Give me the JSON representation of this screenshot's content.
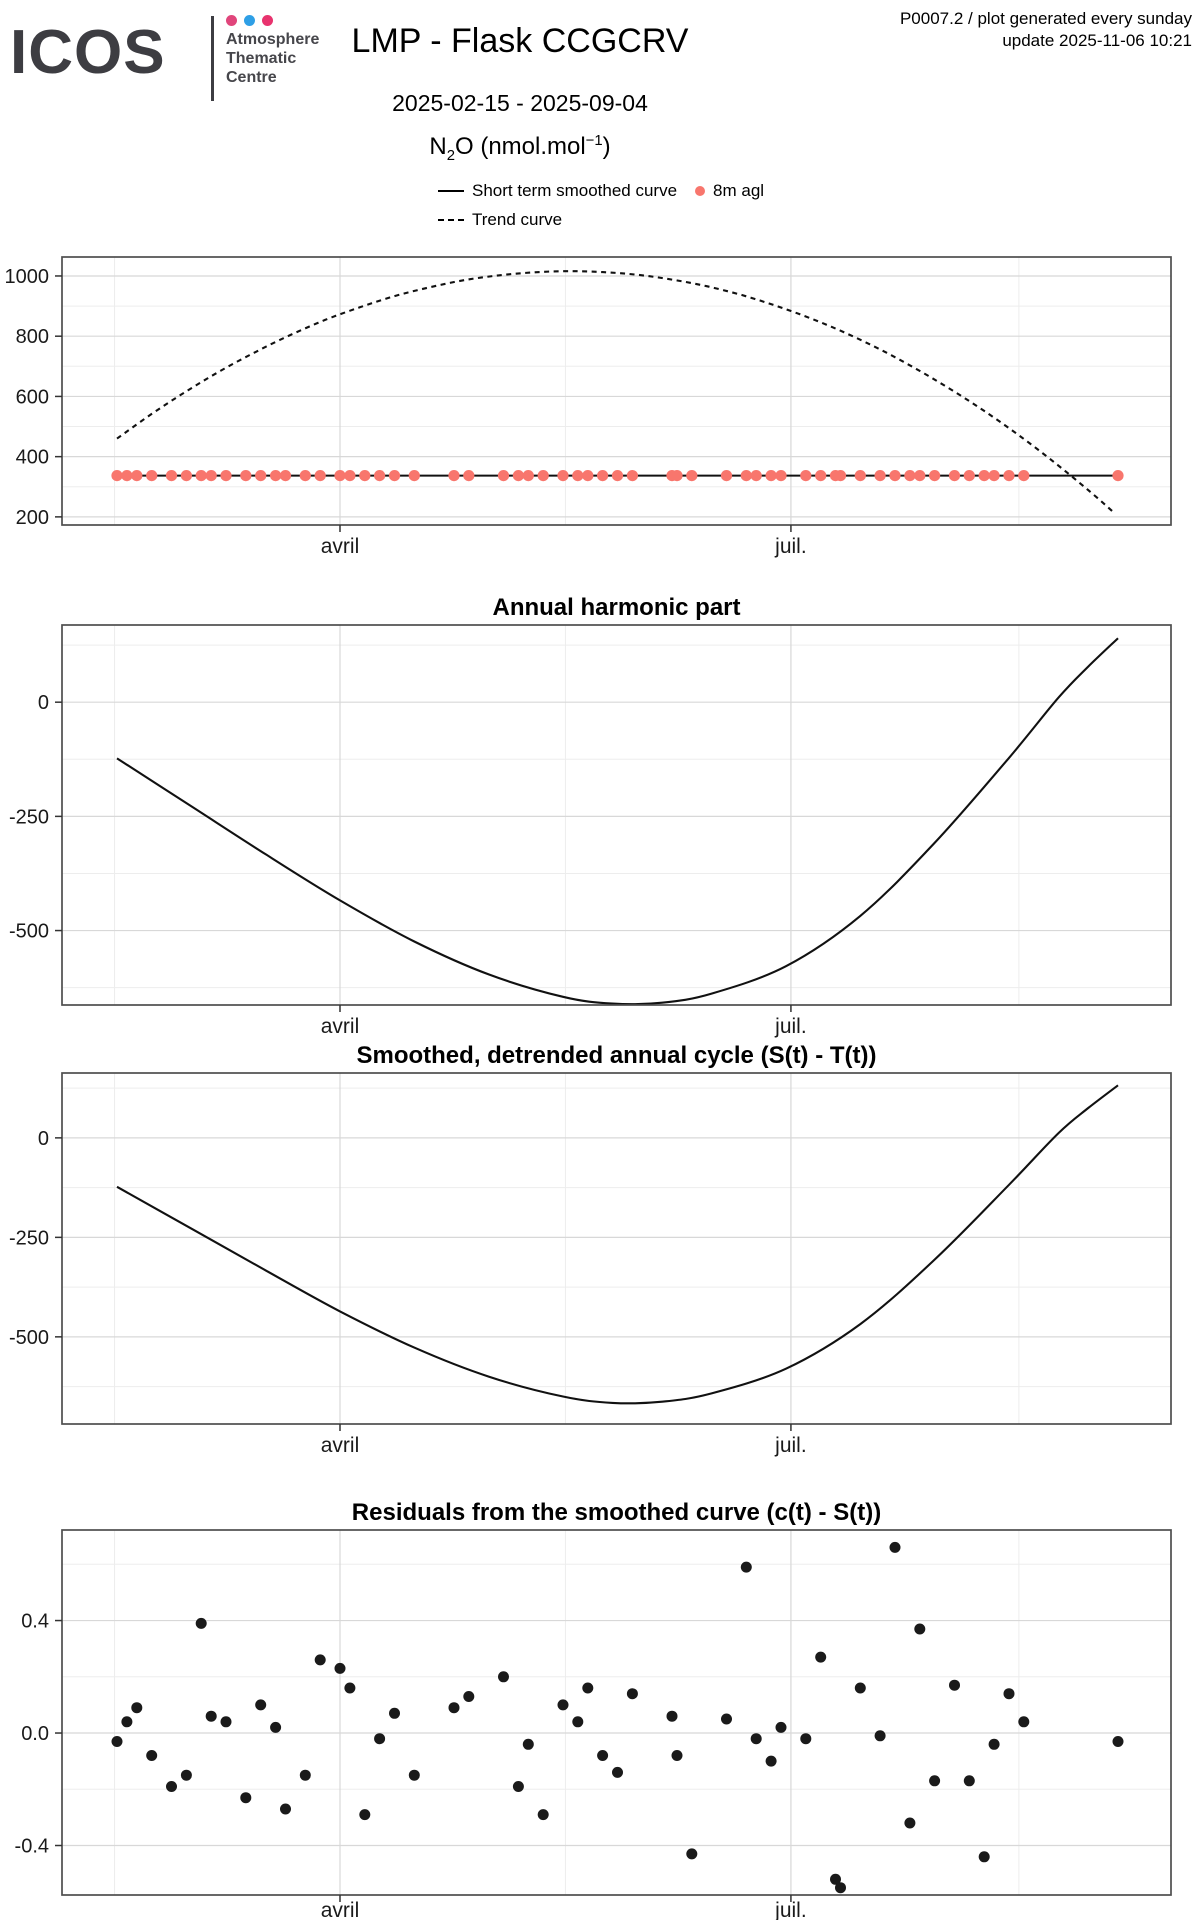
{
  "header": {
    "logo_text": "ICOS",
    "logo_unit": [
      "Atmosphere",
      "Thematic",
      "Centre"
    ],
    "brand_dot_colors": [
      "#e0457b",
      "#2e9fe6",
      "#e8336e"
    ],
    "title": "LMP - Flask CCGCRV",
    "date_range": "2025-02-15 - 2025-09-04",
    "species": {
      "prefix": "N",
      "sub": "2",
      "mid": "O (nmol.mol",
      "sup": "−1",
      "close": ")"
    },
    "info_line1": "P0007.2 / plot generated every sunday",
    "info_line2": "update  2025-11-06 10:21"
  },
  "legend": {
    "smoothed_label": "Short term smoothed curve",
    "points_label": "8m agl",
    "trend_label": "Trend curve",
    "point_color": "#F8766D",
    "line_color": "#000000"
  },
  "chart_data": [
    {
      "type": "line",
      "title": "",
      "ylabel": "N2O (nmol.mol-1)",
      "xlim_days": [
        -11.1,
        212.7
      ],
      "x_ticks": [
        {
          "label": "avril",
          "day": 45
        },
        {
          "label": "juil.",
          "day": 136
        }
      ],
      "x_minor_days": [
        -0.5,
        90.5,
        182
      ],
      "ylim": [
        173,
        1063
      ],
      "y_ticks": [
        {
          "v": 200,
          "label": "200"
        },
        {
          "v": 400,
          "label": "400"
        },
        {
          "v": 600,
          "label": "600"
        },
        {
          "v": 800,
          "label": "800"
        },
        {
          "v": 1000,
          "label": "1000"
        }
      ],
      "y_minor": [
        300,
        500,
        700,
        900
      ],
      "series": [
        {
          "name": "Trend curve",
          "type": "line",
          "dash": true,
          "color": "#111111",
          "points": [
            [
              0,
              460
            ],
            [
              7,
              542
            ],
            [
              14,
              617
            ],
            [
              21,
              686
            ],
            [
              28,
              748
            ],
            [
              35,
              804
            ],
            [
              42,
              854
            ],
            [
              49,
              896
            ],
            [
              56,
              933
            ],
            [
              63,
              962
            ],
            [
              70,
              986
            ],
            [
              77,
              1002
            ],
            [
              84,
              1012
            ],
            [
              91,
              1016
            ],
            [
              98,
              1013
            ],
            [
              105,
              1004
            ],
            [
              112,
              988
            ],
            [
              119,
              966
            ],
            [
              126,
              937
            ],
            [
              133,
              901
            ],
            [
              140,
              859
            ],
            [
              147,
              811
            ],
            [
              154,
              756
            ],
            [
              161,
              694
            ],
            [
              168,
              626
            ],
            [
              175,
              552
            ],
            [
              182,
              471
            ],
            [
              189,
              383
            ],
            [
              196,
              289
            ],
            [
              201,
              217
            ]
          ]
        },
        {
          "name": "Short term smoothed curve",
          "type": "line",
          "dash": false,
          "color": "#111111",
          "points": [
            [
              0,
              337
            ],
            [
              202,
              337
            ]
          ]
        },
        {
          "name": "8m agl",
          "type": "scatter",
          "color": "#F8766D",
          "radius": 5.6,
          "value": 337,
          "days": [
            0,
            2,
            4,
            7,
            11,
            14,
            17,
            19,
            22,
            26,
            29,
            32,
            34,
            38,
            41,
            45,
            47,
            50,
            53,
            56,
            60,
            68,
            71,
            78,
            81,
            83,
            86,
            90,
            93,
            95,
            98,
            101,
            104,
            112,
            113,
            116,
            123,
            127,
            129,
            132,
            134,
            139,
            142,
            145,
            146,
            150,
            154,
            157,
            160,
            162,
            165,
            169,
            172,
            175,
            177,
            180,
            183,
            202
          ]
        }
      ]
    },
    {
      "type": "line",
      "title": "Annual harmonic part",
      "xlim_days": [
        -11.1,
        212.7
      ],
      "x_ticks": [
        {
          "label": "avril",
          "day": 45
        },
        {
          "label": "juil.",
          "day": 136
        }
      ],
      "x_minor_days": [
        -0.5,
        90.5,
        182
      ],
      "ylim": [
        -663,
        169
      ],
      "y_ticks": [
        {
          "v": 0,
          "label": "0"
        },
        {
          "v": -250,
          "label": "-250"
        },
        {
          "v": -500,
          "label": "-500"
        }
      ],
      "y_minor": [
        125,
        -125,
        -375,
        -625
      ],
      "series": [
        {
          "name": "Annual harmonic",
          "type": "line",
          "dash": false,
          "color": "#111111",
          "points": [
            [
              0,
              -123
            ],
            [
              15,
              -228
            ],
            [
              30,
              -333
            ],
            [
              45,
              -434
            ],
            [
              60,
              -524
            ],
            [
              75,
              -596
            ],
            [
              90,
              -645
            ],
            [
              100,
              -660
            ],
            [
              110,
              -658
            ],
            [
              120,
              -638
            ],
            [
              135,
              -578
            ],
            [
              150,
              -468
            ],
            [
              165,
              -308
            ],
            [
              180,
              -122
            ],
            [
              190,
              10
            ],
            [
              196,
              78
            ],
            [
              202,
              140
            ]
          ]
        }
      ]
    },
    {
      "type": "line",
      "title": "Smoothed, detrended annual cycle (S(t) - T(t))",
      "xlim_days": [
        -11.1,
        212.7
      ],
      "x_ticks": [
        {
          "label": "avril",
          "day": 45
        },
        {
          "label": "juil.",
          "day": 136
        }
      ],
      "x_minor_days": [
        -0.5,
        90.5,
        182
      ],
      "ylim": [
        -719,
        163
      ],
      "y_ticks": [
        {
          "v": 0,
          "label": "0"
        },
        {
          "v": -250,
          "label": "-250"
        },
        {
          "v": -500,
          "label": "-500"
        }
      ],
      "y_minor": [
        125,
        -125,
        -375,
        -625
      ],
      "series": [
        {
          "name": "Smoothed detrended annual cycle",
          "type": "line",
          "dash": false,
          "color": "#111111",
          "points": [
            [
              0,
              -123
            ],
            [
              15,
              -228
            ],
            [
              30,
              -333
            ],
            [
              45,
              -436
            ],
            [
              60,
              -527
            ],
            [
              75,
              -600
            ],
            [
              90,
              -650
            ],
            [
              100,
              -666
            ],
            [
              110,
              -663
            ],
            [
              120,
              -642
            ],
            [
              135,
              -580
            ],
            [
              150,
              -468
            ],
            [
              165,
              -306
            ],
            [
              180,
              -118
            ],
            [
              190,
              12
            ],
            [
              196,
              75
            ],
            [
              202,
              132
            ]
          ]
        }
      ]
    },
    {
      "type": "scatter",
      "title": "Residuals from the smoothed curve (c(t) - S(t))",
      "xlim_days": [
        -11.1,
        212.7
      ],
      "x_ticks": [
        {
          "label": "avril",
          "day": 45
        },
        {
          "label": "juil.",
          "day": 136
        }
      ],
      "x_minor_days": [
        -0.5,
        90.5,
        182
      ],
      "ylim": [
        -0.576,
        0.722
      ],
      "y_ticks": [
        {
          "v": 0.4,
          "label": "0.4"
        },
        {
          "v": 0,
          "label": "0.0"
        },
        {
          "v": -0.4,
          "label": "-0.4"
        }
      ],
      "y_minor": [
        0.6,
        0.2,
        -0.2,
        -0.6
      ],
      "series": [
        {
          "name": "Residuals",
          "type": "scatter",
          "color": "#1a1a1a",
          "radius": 5.5,
          "points": [
            [
              0,
              -0.03
            ],
            [
              2,
              0.04
            ],
            [
              4,
              0.09
            ],
            [
              7,
              -0.08
            ],
            [
              11,
              -0.19
            ],
            [
              14,
              -0.15
            ],
            [
              17,
              0.39
            ],
            [
              19,
              0.06
            ],
            [
              22,
              0.04
            ],
            [
              26,
              -0.23
            ],
            [
              29,
              0.1
            ],
            [
              32,
              0.02
            ],
            [
              34,
              -0.27
            ],
            [
              38,
              -0.15
            ],
            [
              41,
              0.26
            ],
            [
              45,
              0.23
            ],
            [
              47,
              0.16
            ],
            [
              50,
              -0.29
            ],
            [
              53,
              -0.02
            ],
            [
              56,
              0.07
            ],
            [
              60,
              -0.15
            ],
            [
              68,
              0.09
            ],
            [
              71,
              0.13
            ],
            [
              78,
              0.2
            ],
            [
              81,
              -0.19
            ],
            [
              83,
              -0.04
            ],
            [
              86,
              -0.29
            ],
            [
              90,
              0.1
            ],
            [
              93,
              0.04
            ],
            [
              95,
              0.16
            ],
            [
              98,
              -0.08
            ],
            [
              101,
              -0.14
            ],
            [
              104,
              0.14
            ],
            [
              112,
              0.06
            ],
            [
              113,
              -0.08
            ],
            [
              116,
              -0.43
            ],
            [
              123,
              0.05
            ],
            [
              127,
              0.59
            ],
            [
              129,
              -0.02
            ],
            [
              132,
              -0.1
            ],
            [
              134,
              0.02
            ],
            [
              139,
              -0.02
            ],
            [
              142,
              0.27
            ],
            [
              145,
              -0.52
            ],
            [
              146,
              -0.55
            ],
            [
              150,
              0.16
            ],
            [
              154,
              -0.01
            ],
            [
              157,
              0.66
            ],
            [
              160,
              -0.32
            ],
            [
              162,
              0.37
            ],
            [
              165,
              -0.17
            ],
            [
              169,
              0.17
            ],
            [
              172,
              -0.17
            ],
            [
              175,
              -0.44
            ],
            [
              177,
              -0.04
            ],
            [
              180,
              0.14
            ],
            [
              183,
              0.04
            ],
            [
              202,
              -0.03
            ]
          ]
        }
      ]
    }
  ]
}
